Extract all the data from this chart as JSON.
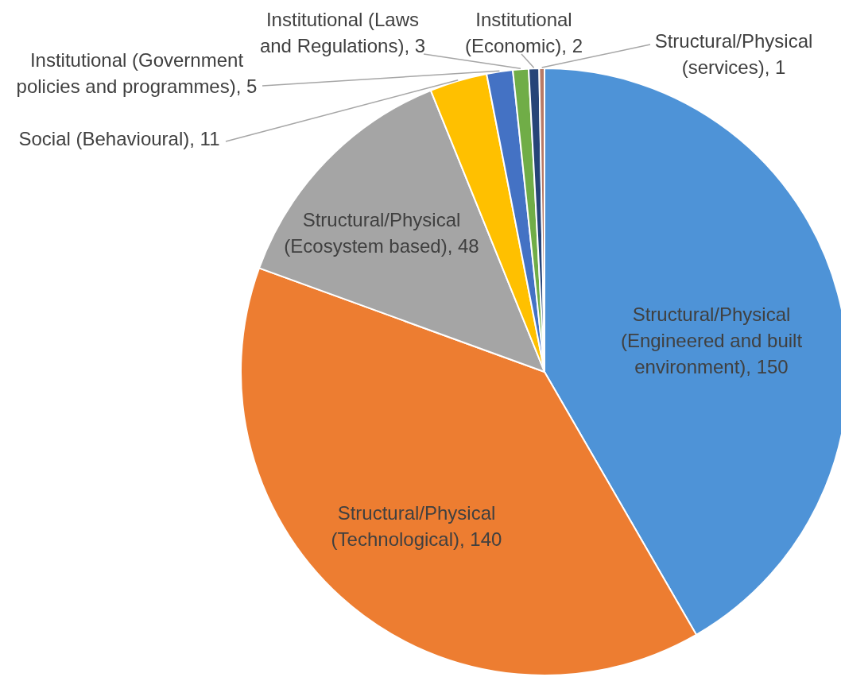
{
  "chart_data": {
    "type": "pie",
    "categories": [
      "Structural/Physical (Engineered and built environment)",
      "Structural/Physical (Technological)",
      "Structural/Physical (Ecosystem based)",
      "Social (Behavioural)",
      "Institutional (Government policies and programmes)",
      "Institutional (Laws and Regulations)",
      "Institutional (Economic)",
      "Structural/Physical (services)"
    ],
    "values": [
      150,
      140,
      48,
      11,
      5,
      3,
      2,
      1
    ],
    "value_labels": [
      ", 150",
      ", 140",
      ", 48",
      ", 11",
      ", 5",
      ", 3",
      ", 2",
      ", 1"
    ],
    "colors": [
      "#4e93d7",
      "#ed7d31",
      "#a5a5a5",
      "#ffc000",
      "#4472c4",
      "#70ad47",
      "#264478",
      "#b87a66"
    ]
  }
}
